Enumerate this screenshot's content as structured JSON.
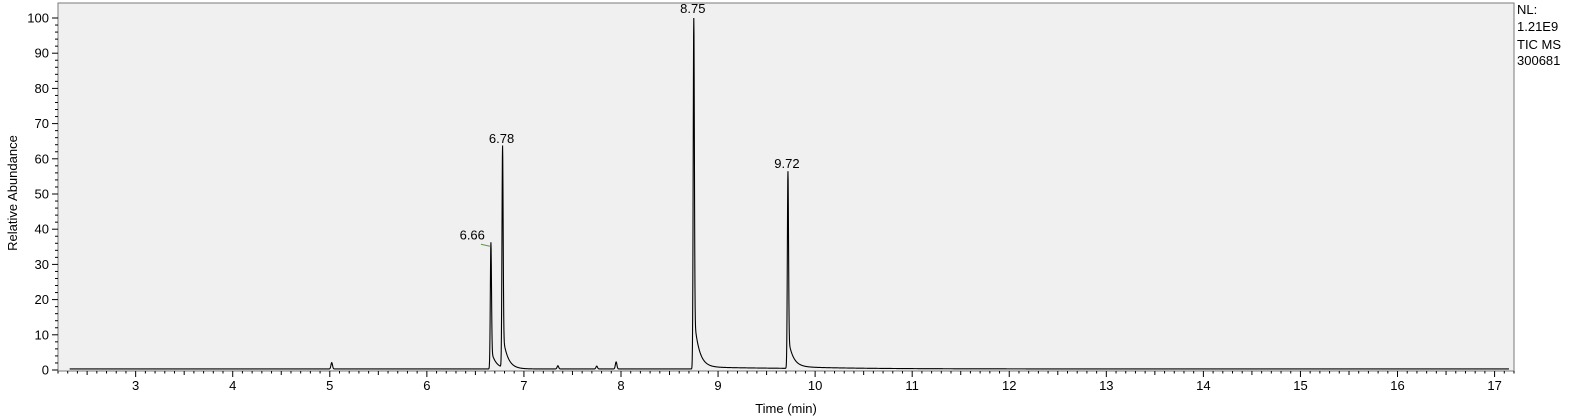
{
  "chart_data": {
    "type": "line",
    "xlabel": "Time (min)",
    "ylabel": "Relative Abundance",
    "xlim": [
      2.2,
      17.2
    ],
    "ylim": [
      0,
      100
    ],
    "x_ticks": [
      3,
      4,
      5,
      6,
      7,
      8,
      9,
      10,
      11,
      12,
      13,
      14,
      15,
      16,
      17
    ],
    "y_ticks": [
      0,
      10,
      20,
      30,
      40,
      50,
      60,
      70,
      80,
      90,
      100
    ],
    "grid": false,
    "background_color": "#f0f0f0",
    "line_color": "#000000",
    "label_connector_color": "#5a9a3c",
    "peaks": [
      {
        "x": 6.66,
        "y": 36,
        "label": "6.66"
      },
      {
        "x": 6.78,
        "y": 63,
        "label": "6.78"
      },
      {
        "x": 8.75,
        "y": 100,
        "label": "8.75"
      },
      {
        "x": 9.72,
        "y": 56,
        "label": "9.72"
      }
    ],
    "minor_peaks": [
      {
        "x": 5.02,
        "y": 1.8
      },
      {
        "x": 7.35,
        "y": 0.9
      },
      {
        "x": 7.75,
        "y": 0.8
      },
      {
        "x": 7.95,
        "y": 2.0
      }
    ],
    "baseline": 0.3
  },
  "info": {
    "nl_label": "NL:",
    "nl_value": "1.21E9",
    "scan_filter": "TIC  MS",
    "file_id": "300681"
  }
}
